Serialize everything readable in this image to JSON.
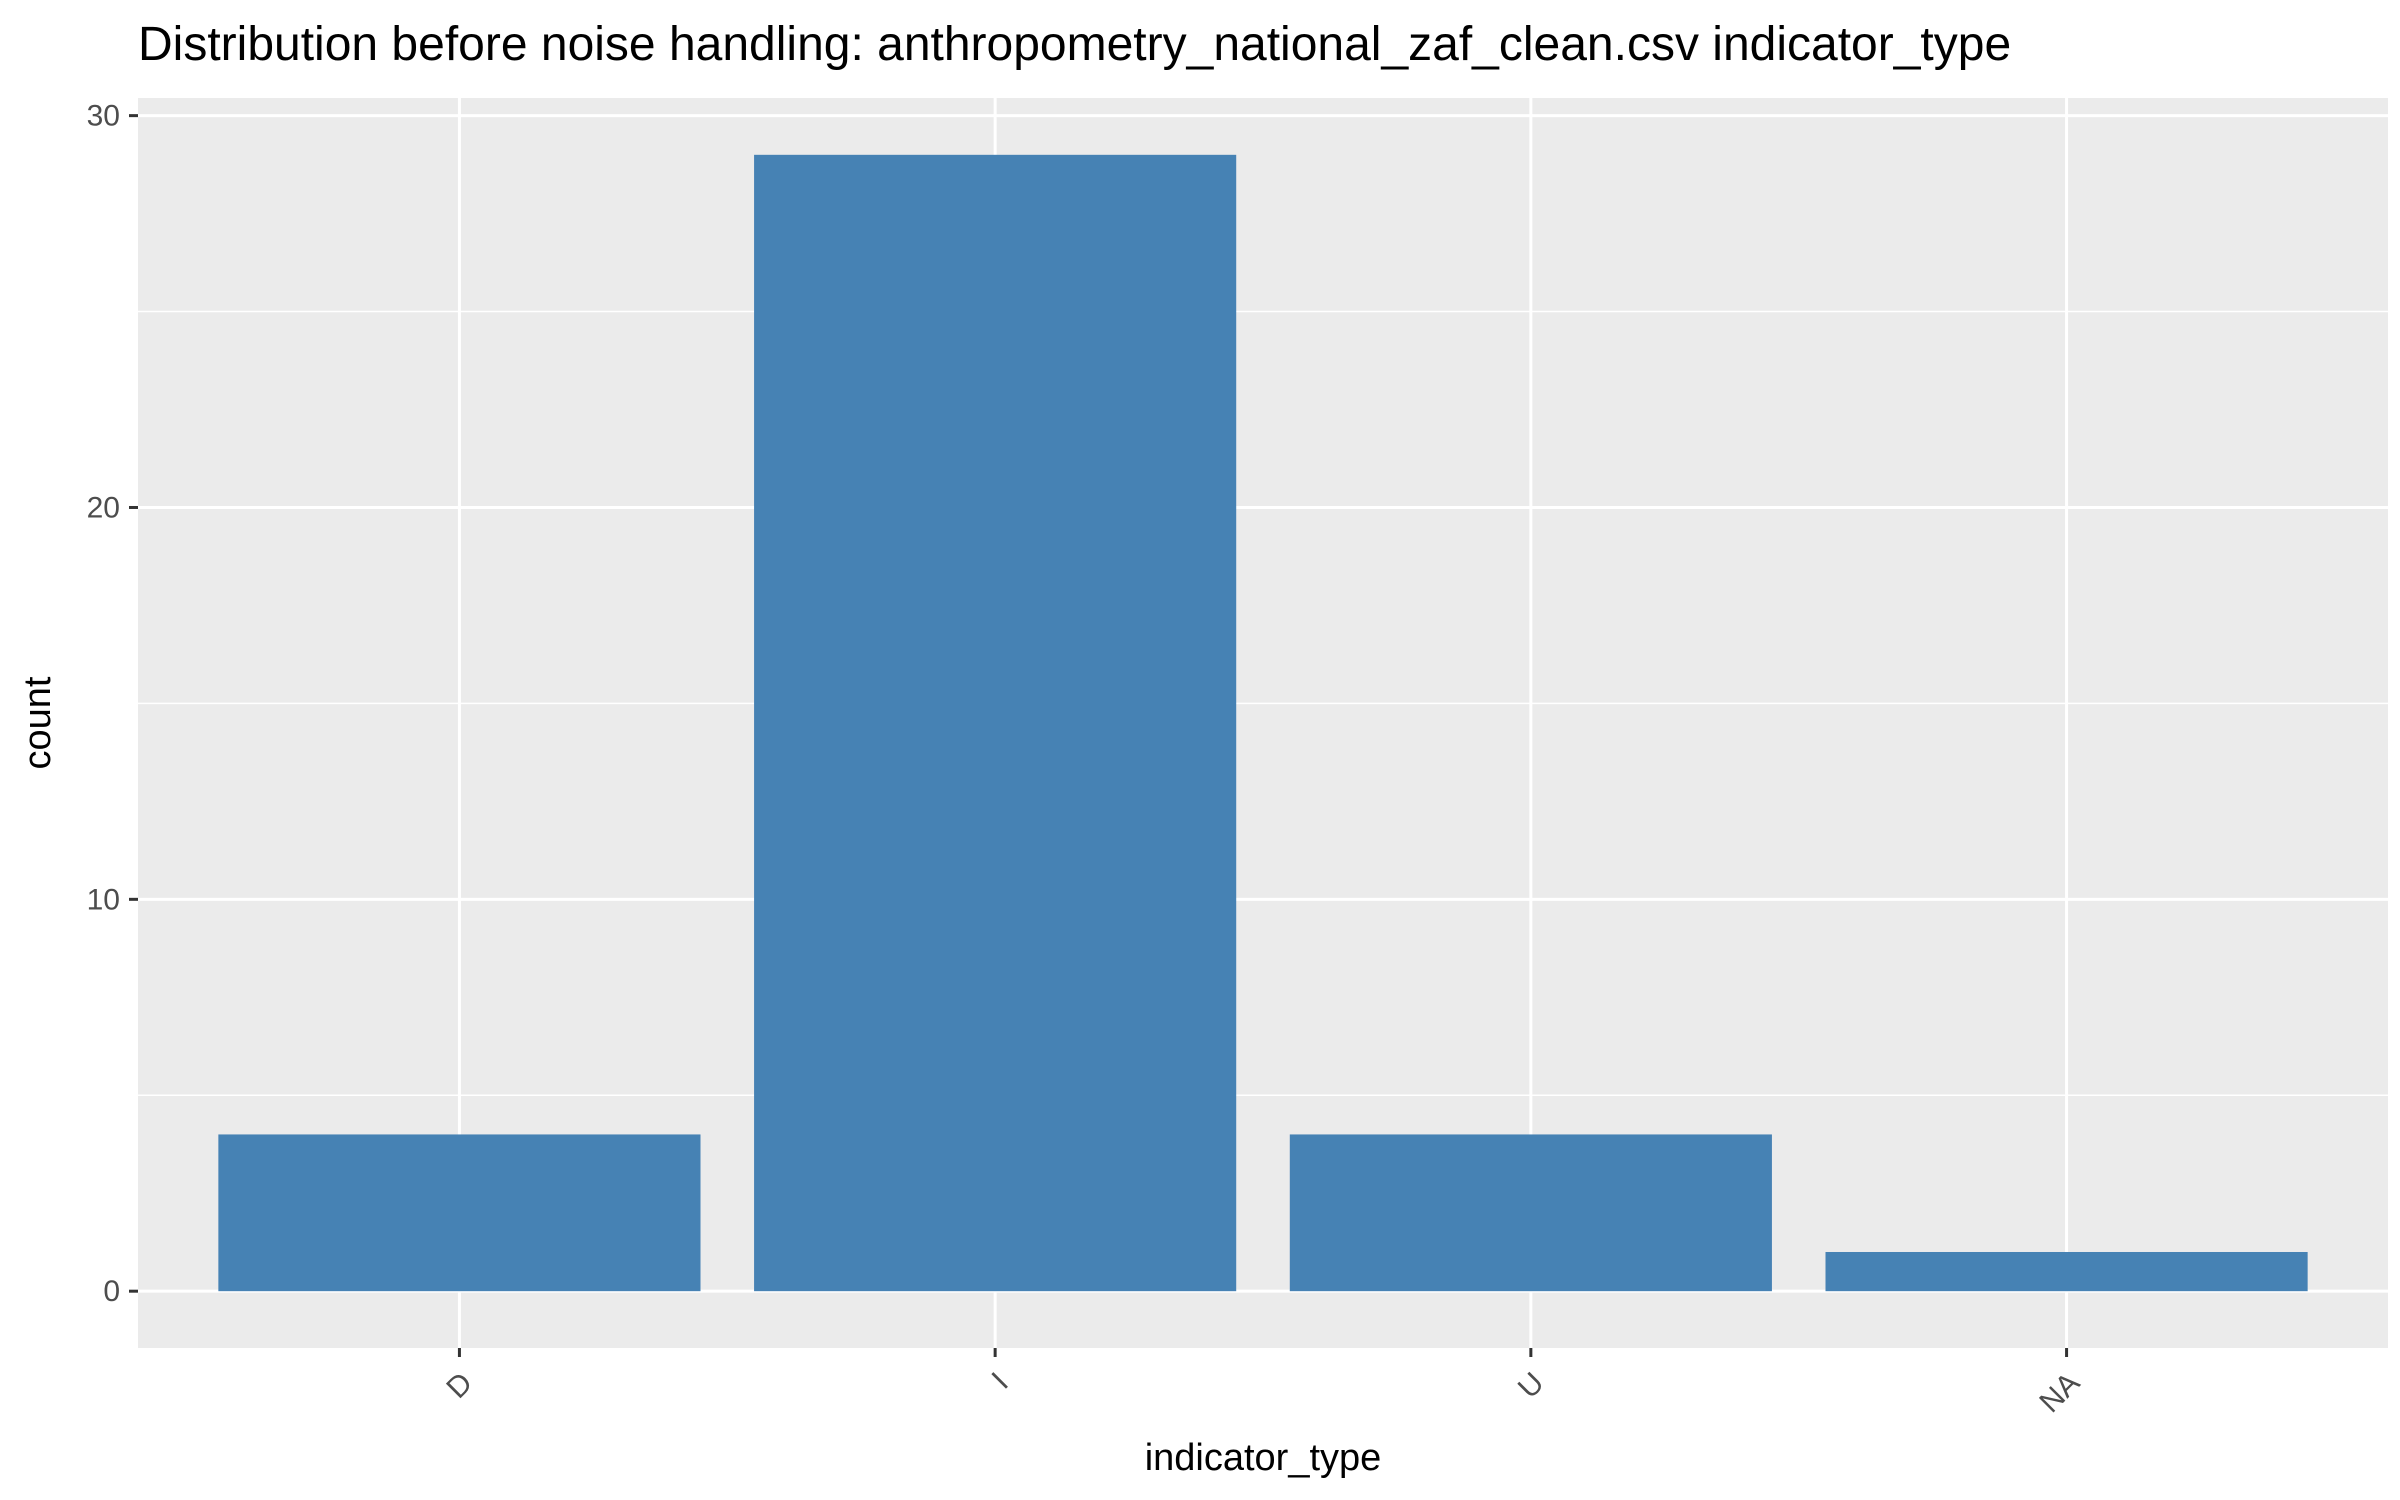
{
  "chart_data": {
    "type": "bar",
    "title": "Distribution before noise handling: anthropometry_national_zaf_clean.csv indicator_type",
    "xlabel": "indicator_type",
    "ylabel": "count",
    "categories": [
      "D",
      "I",
      "U",
      "NA"
    ],
    "values": [
      4,
      29,
      4,
      1
    ],
    "ylim": [
      -1.45,
      30.45
    ],
    "yticks": [
      0,
      10,
      20,
      30
    ],
    "grid": true,
    "legend": "none",
    "colors": {
      "bar": "#4682B4",
      "panel": "#EBEBEB",
      "grid": "#FFFFFF"
    }
  }
}
